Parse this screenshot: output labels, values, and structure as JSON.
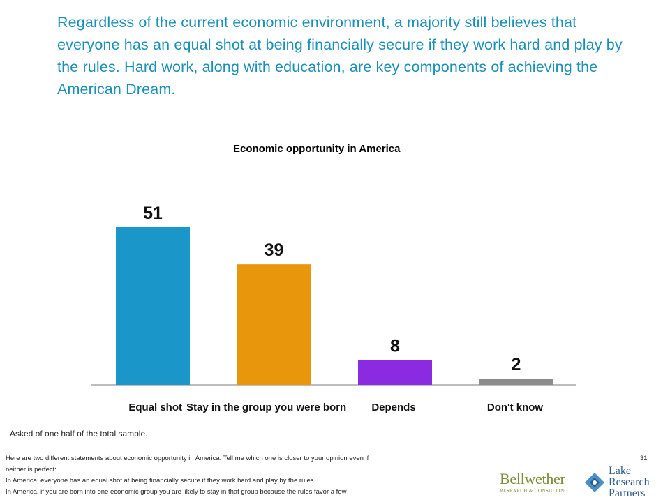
{
  "headline": "Regardless of the current economic environment, a majority still believes that everyone has an equal shot at being financially secure if they work hard and play by the rules. Hard work, along with education, are key components of achieving the American Dream.",
  "chart_data": {
    "type": "bar",
    "title": "Economic opportunity in America",
    "categories": [
      "Equal shot",
      "Stay in the group you were born",
      "Depends",
      "Don't know"
    ],
    "values": [
      51,
      39,
      8,
      2
    ],
    "value_labels": [
      "51",
      "39",
      "8",
      "2"
    ],
    "colors": [
      "#1a96c8",
      "#e8960c",
      "#8a2be2",
      "#8c8c8c"
    ],
    "xlabel": "",
    "ylabel": "",
    "ylim": [
      0,
      51
    ],
    "grid": false,
    "legend": "none"
  },
  "sample_note": "Asked of one half of the total sample.",
  "footnote": {
    "lines": [
      "Here are two different statements about economic opportunity in America. Tell me which one is closer to your opinion even if",
      "neither is perfect:",
      "In America, everyone has an equal shot at being financially secure if they work hard and play by the rules",
      "In America, if you are born into one economic group you are likely to stay in that group because the rules favor a few"
    ]
  },
  "page_number": "31",
  "logos": {
    "bellwether_name": "Bellwether",
    "bellwether_sub": "RESEARCH & CONSULTING",
    "lake_lines": [
      "Lake",
      "Research",
      "Partners"
    ]
  }
}
